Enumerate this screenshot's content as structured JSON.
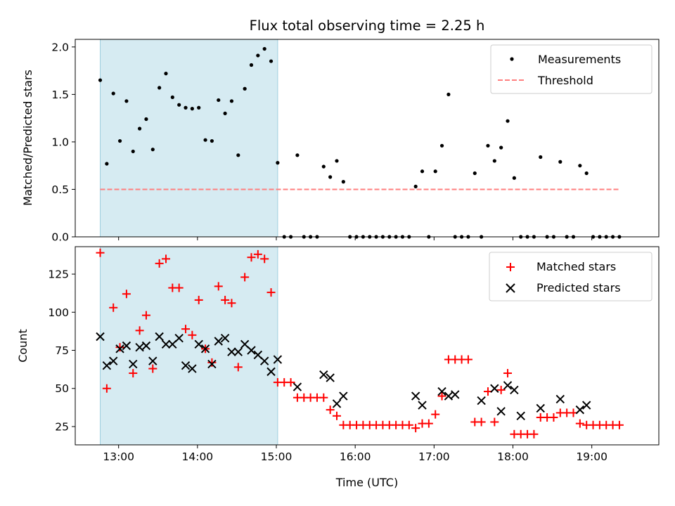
{
  "chart_data": [
    {
      "type": "scatter",
      "title": "Flux total observing time = 2.25 h",
      "ylabel": "Matched/Predicted stars",
      "xlabel": "",
      "ylim": [
        0,
        2.08
      ],
      "yticks": [
        "0.0",
        "0.5",
        "1.0",
        "1.5",
        "2.0"
      ],
      "ytick_values": [
        0,
        0.5,
        1.0,
        1.5,
        2.0
      ],
      "legend_position": "top-right",
      "shaded_region": {
        "start": "12:46",
        "end": "15:01",
        "color": "#add8e6"
      },
      "series": [
        {
          "name": "Measurements",
          "marker": "dot",
          "color": "#000000",
          "x": [
            "12:46",
            "12:51",
            "12:56",
            "13:01",
            "13:06",
            "13:11",
            "13:16",
            "13:21",
            "13:26",
            "13:31",
            "13:36",
            "13:41",
            "13:46",
            "13:51",
            "13:56",
            "14:01",
            "14:06",
            "14:11",
            "14:16",
            "14:21",
            "14:26",
            "14:31",
            "14:36",
            "14:41",
            "14:46",
            "14:51",
            "14:56",
            "15:01",
            "15:06",
            "15:11",
            "15:16",
            "15:21",
            "15:26",
            "15:31",
            "15:36",
            "15:41",
            "15:46",
            "15:51",
            "15:56",
            "16:01",
            "16:06",
            "16:11",
            "16:16",
            "16:21",
            "16:26",
            "16:31",
            "16:36",
            "16:41",
            "16:46",
            "16:51",
            "16:56",
            "17:01",
            "17:06",
            "17:11",
            "17:16",
            "17:21",
            "17:26",
            "17:31",
            "17:36",
            "17:41",
            "17:46",
            "17:51",
            "17:56",
            "18:01",
            "18:06",
            "18:11",
            "18:16",
            "18:21",
            "18:26",
            "18:31",
            "18:36",
            "18:41",
            "18:46",
            "18:51",
            "18:56",
            "19:01",
            "19:06",
            "19:11",
            "19:16",
            "19:21"
          ],
          "y": [
            1.65,
            0.77,
            1.51,
            1.01,
            1.43,
            0.9,
            1.14,
            1.24,
            0.92,
            1.57,
            1.72,
            1.47,
            1.39,
            1.36,
            1.35,
            1.36,
            1.02,
            1.01,
            1.44,
            1.3,
            1.43,
            0.86,
            1.56,
            1.81,
            1.91,
            1.98,
            1.85,
            0.78,
            0,
            0,
            0.86,
            0,
            0,
            0,
            0.74,
            0.63,
            0.8,
            0.58,
            0,
            0,
            0,
            0,
            0,
            0,
            0,
            0,
            0,
            0,
            0.53,
            0.69,
            0,
            0.69,
            0.96,
            1.5,
            0,
            0,
            0,
            0.67,
            0,
            0.96,
            0.8,
            0.94,
            1.22,
            0.62,
            0,
            0,
            0,
            0.84,
            0,
            0,
            0.79,
            0,
            0,
            0.75,
            0.67,
            0,
            0,
            0,
            0,
            0
          ]
        },
        {
          "name": "Threshold",
          "marker": "dashed-line",
          "color": "#ff7f7f",
          "x": [
            "12:46",
            "19:21"
          ],
          "y": [
            0.5,
            0.5
          ]
        }
      ]
    },
    {
      "type": "scatter",
      "title": "",
      "ylabel": "Count",
      "xlabel": "Time (UTC)",
      "ylim": [
        13,
        143
      ],
      "yticks": [
        "25",
        "50",
        "75",
        "100",
        "125"
      ],
      "ytick_values": [
        25,
        50,
        75,
        100,
        125
      ],
      "xticks": [
        "13:00",
        "14:00",
        "15:00",
        "16:00",
        "17:00",
        "18:00",
        "19:00"
      ],
      "xtick_values": [
        "13:00",
        "14:00",
        "15:00",
        "16:00",
        "17:00",
        "18:00",
        "19:00"
      ],
      "xlim": [
        "12:27",
        "19:51"
      ],
      "legend_position": "top-right",
      "shaded_region": {
        "start": "12:46",
        "end": "15:01",
        "color": "#add8e6"
      },
      "series": [
        {
          "name": "Matched stars",
          "marker": "plus",
          "color": "#ff0000",
          "x": [
            "12:46",
            "12:51",
            "12:56",
            "13:01",
            "13:06",
            "13:11",
            "13:16",
            "13:21",
            "13:26",
            "13:31",
            "13:36",
            "13:41",
            "13:46",
            "13:51",
            "13:56",
            "14:01",
            "14:06",
            "14:11",
            "14:16",
            "14:21",
            "14:26",
            "14:31",
            "14:36",
            "14:41",
            "14:46",
            "14:51",
            "14:56",
            "15:01",
            "15:06",
            "15:11",
            "15:16",
            "15:21",
            "15:26",
            "15:31",
            "15:36",
            "15:41",
            "15:46",
            "15:51",
            "15:56",
            "16:01",
            "16:06",
            "16:11",
            "16:16",
            "16:21",
            "16:26",
            "16:31",
            "16:36",
            "16:41",
            "16:46",
            "16:51",
            "16:56",
            "17:01",
            "17:06",
            "17:11",
            "17:16",
            "17:21",
            "17:26",
            "17:31",
            "17:36",
            "17:41",
            "17:46",
            "17:51",
            "17:56",
            "18:01",
            "18:06",
            "18:11",
            "18:16",
            "18:21",
            "18:26",
            "18:31",
            "18:36",
            "18:41",
            "18:46",
            "18:51",
            "18:56",
            "19:01",
            "19:06",
            "19:11",
            "19:16",
            "19:21"
          ],
          "y": [
            139,
            50,
            103,
            77,
            112,
            60,
            88,
            98,
            63,
            132,
            135,
            116,
            116,
            89,
            85,
            108,
            76,
            67,
            117,
            108,
            106,
            64,
            123,
            136,
            138,
            135,
            113,
            54,
            54,
            54,
            44,
            44,
            44,
            44,
            44,
            36,
            32,
            26,
            26,
            26,
            26,
            26,
            26,
            26,
            26,
            26,
            26,
            26,
            24,
            27,
            27,
            33,
            45,
            69,
            69,
            69,
            69,
            28,
            28,
            48,
            28,
            49,
            60,
            20,
            20,
            20,
            20,
            31,
            31,
            31,
            34,
            34,
            34,
            27,
            26,
            26,
            26,
            26,
            26,
            26
          ]
        },
        {
          "name": "Predicted stars",
          "marker": "x",
          "color": "#000000",
          "x": [
            "12:46",
            "12:51",
            "12:56",
            "13:01",
            "13:06",
            "13:11",
            "13:16",
            "13:21",
            "13:26",
            "13:31",
            "13:36",
            "13:41",
            "13:46",
            "13:51",
            "13:56",
            "14:01",
            "14:06",
            "14:11",
            "14:16",
            "14:21",
            "14:26",
            "14:31",
            "14:36",
            "14:41",
            "14:46",
            "14:51",
            "14:56",
            "15:01",
            "15:16",
            "15:36",
            "15:41",
            "15:46",
            "15:51",
            "16:46",
            "16:51",
            "17:06",
            "17:11",
            "17:16",
            "17:36",
            "17:46",
            "17:51",
            "17:56",
            "18:01",
            "18:06",
            "18:21",
            "18:36",
            "18:51",
            "18:56"
          ],
          "y": [
            84,
            65,
            68,
            76,
            78,
            66,
            77,
            78,
            68,
            84,
            79,
            79,
            83,
            65,
            63,
            79,
            76,
            66,
            81,
            83,
            74,
            74,
            79,
            75,
            72,
            68,
            61,
            69,
            51,
            59,
            57,
            40,
            45,
            45,
            39,
            48,
            45,
            46,
            42,
            50,
            35,
            52,
            49,
            32,
            37,
            43,
            36,
            39
          ]
        }
      ]
    }
  ]
}
